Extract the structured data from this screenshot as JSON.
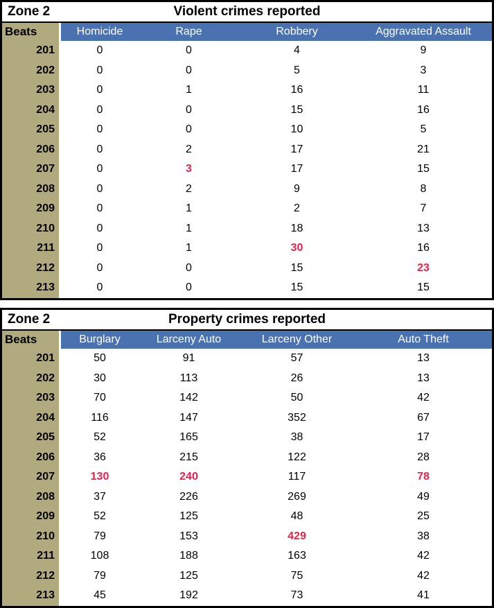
{
  "colors": {
    "header_blue": "#4A72B1",
    "beats_tan": "#B1AA7E",
    "highlight_red": "#E8234B",
    "border_black": "#000000",
    "header_text": "#FFFFFF"
  },
  "chart_data": [
    {
      "type": "table",
      "zone_label": "Zone 2",
      "title": "Violent crimes reported",
      "beats_header": "Beats",
      "columns": [
        "Homicide",
        "Rape",
        "Robbery",
        "Aggravated Assault"
      ],
      "rows": [
        {
          "beat": "201",
          "values": [
            "0",
            "0",
            "4",
            "9"
          ],
          "highlights": [
            false,
            false,
            false,
            false
          ]
        },
        {
          "beat": "202",
          "values": [
            "0",
            "0",
            "5",
            "3"
          ],
          "highlights": [
            false,
            false,
            false,
            false
          ]
        },
        {
          "beat": "203",
          "values": [
            "0",
            "1",
            "16",
            "11"
          ],
          "highlights": [
            false,
            false,
            false,
            false
          ]
        },
        {
          "beat": "204",
          "values": [
            "0",
            "0",
            "15",
            "16"
          ],
          "highlights": [
            false,
            false,
            false,
            false
          ]
        },
        {
          "beat": "205",
          "values": [
            "0",
            "0",
            "10",
            "5"
          ],
          "highlights": [
            false,
            false,
            false,
            false
          ]
        },
        {
          "beat": "206",
          "values": [
            "0",
            "2",
            "17",
            "21"
          ],
          "highlights": [
            false,
            false,
            false,
            false
          ]
        },
        {
          "beat": "207",
          "values": [
            "0",
            "3",
            "17",
            "15"
          ],
          "highlights": [
            false,
            true,
            false,
            false
          ]
        },
        {
          "beat": "208",
          "values": [
            "0",
            "2",
            "9",
            "8"
          ],
          "highlights": [
            false,
            false,
            false,
            false
          ]
        },
        {
          "beat": "209",
          "values": [
            "0",
            "1",
            "2",
            "7"
          ],
          "highlights": [
            false,
            false,
            false,
            false
          ]
        },
        {
          "beat": "210",
          "values": [
            "0",
            "1",
            "18",
            "13"
          ],
          "highlights": [
            false,
            false,
            false,
            false
          ]
        },
        {
          "beat": "211",
          "values": [
            "0",
            "1",
            "30",
            "16"
          ],
          "highlights": [
            false,
            false,
            true,
            false
          ]
        },
        {
          "beat": "212",
          "values": [
            "0",
            "0",
            "15",
            "23"
          ],
          "highlights": [
            false,
            false,
            false,
            true
          ]
        },
        {
          "beat": "213",
          "values": [
            "0",
            "0",
            "15",
            "15"
          ],
          "highlights": [
            false,
            false,
            false,
            false
          ]
        }
      ]
    },
    {
      "type": "table",
      "zone_label": "Zone 2",
      "title": "Property crimes reported",
      "beats_header": "Beats",
      "columns": [
        "Burglary",
        "Larceny Auto",
        "Larceny Other",
        "Auto Theft"
      ],
      "rows": [
        {
          "beat": "201",
          "values": [
            "50",
            "91",
            "57",
            "13"
          ],
          "highlights": [
            false,
            false,
            false,
            false
          ]
        },
        {
          "beat": "202",
          "values": [
            "30",
            "113",
            "26",
            "13"
          ],
          "highlights": [
            false,
            false,
            false,
            false
          ]
        },
        {
          "beat": "203",
          "values": [
            "70",
            "142",
            "50",
            "42"
          ],
          "highlights": [
            false,
            false,
            false,
            false
          ]
        },
        {
          "beat": "204",
          "values": [
            "116",
            "147",
            "352",
            "67"
          ],
          "highlights": [
            false,
            false,
            false,
            false
          ]
        },
        {
          "beat": "205",
          "values": [
            "52",
            "165",
            "38",
            "17"
          ],
          "highlights": [
            false,
            false,
            false,
            false
          ]
        },
        {
          "beat": "206",
          "values": [
            "36",
            "215",
            "122",
            "28"
          ],
          "highlights": [
            false,
            false,
            false,
            false
          ]
        },
        {
          "beat": "207",
          "values": [
            "130",
            "240",
            "117",
            "78"
          ],
          "highlights": [
            true,
            true,
            false,
            true
          ]
        },
        {
          "beat": "208",
          "values": [
            "37",
            "226",
            "269",
            "49"
          ],
          "highlights": [
            false,
            false,
            false,
            false
          ]
        },
        {
          "beat": "209",
          "values": [
            "52",
            "125",
            "48",
            "25"
          ],
          "highlights": [
            false,
            false,
            false,
            false
          ]
        },
        {
          "beat": "210",
          "values": [
            "79",
            "153",
            "429",
            "38"
          ],
          "highlights": [
            false,
            false,
            true,
            false
          ]
        },
        {
          "beat": "211",
          "values": [
            "108",
            "188",
            "163",
            "42"
          ],
          "highlights": [
            false,
            false,
            false,
            false
          ]
        },
        {
          "beat": "212",
          "values": [
            "79",
            "125",
            "75",
            "42"
          ],
          "highlights": [
            false,
            false,
            false,
            false
          ]
        },
        {
          "beat": "213",
          "values": [
            "45",
            "192",
            "73",
            "41"
          ],
          "highlights": [
            false,
            false,
            false,
            false
          ]
        }
      ]
    }
  ]
}
